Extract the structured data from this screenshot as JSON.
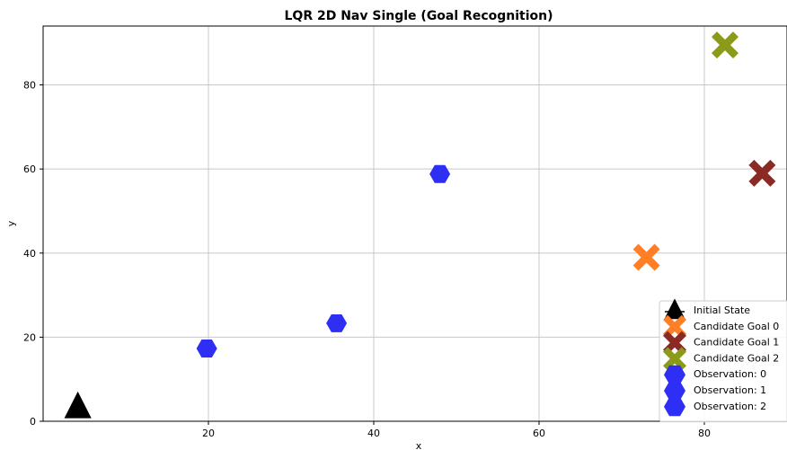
{
  "chart_data": {
    "type": "scatter",
    "title": "LQR 2D Nav Single (Goal Recognition)",
    "xlabel": "x",
    "ylabel": "y",
    "xlim": [
      0,
      90
    ],
    "ylim": [
      0,
      94
    ],
    "xticks": [
      20,
      40,
      60,
      80
    ],
    "yticks": [
      0,
      20,
      40,
      60,
      80
    ],
    "grid": true,
    "legend_position": "lower-right",
    "series": [
      {
        "name": "Initial State",
        "marker": "triangle-icon",
        "color": "#000000",
        "points": [
          {
            "x": 4.2,
            "y": 3.3
          }
        ]
      },
      {
        "name": "Candidate Goal 0",
        "marker": "x-cross-icon",
        "color": "#ff7f27",
        "points": [
          {
            "x": 73.0,
            "y": 39.0
          }
        ]
      },
      {
        "name": "Candidate Goal 1",
        "marker": "x-cross-icon",
        "color": "#8b2a24",
        "points": [
          {
            "x": 87.0,
            "y": 59.0
          }
        ]
      },
      {
        "name": "Candidate Goal 2",
        "marker": "x-cross-icon",
        "color": "#8c9a19",
        "points": [
          {
            "x": 82.5,
            "y": 89.5
          }
        ]
      },
      {
        "name": "Observation: 0",
        "marker": "hexagon-icon",
        "color": "#2e2ef5",
        "points": [
          {
            "x": 19.8,
            "y": 17.3
          }
        ]
      },
      {
        "name": "Observation: 1",
        "marker": "hexagon-icon",
        "color": "#2e2ef5",
        "points": [
          {
            "x": 35.5,
            "y": 23.3
          }
        ]
      },
      {
        "name": "Observation: 2",
        "marker": "hexagon-icon",
        "color": "#2e2ef5",
        "points": [
          {
            "x": 48.0,
            "y": 58.8
          }
        ]
      }
    ]
  }
}
